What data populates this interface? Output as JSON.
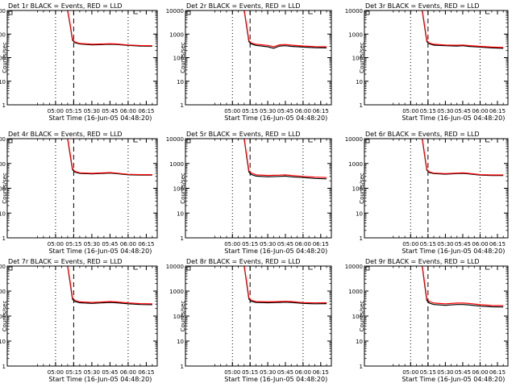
{
  "colors": {
    "events": "#000000",
    "lld": "#ff0000",
    "background": "#ffffff"
  },
  "chart_data": [
    {
      "type": "line",
      "title": "Det 1r BLACK = Events, RED = LLD",
      "xlabel": "Start Time (16-Jun-05 04:48:20)",
      "ylabel": "Counts/sec",
      "y_scale": "log",
      "ylim": [
        1,
        10000
      ],
      "y_ticks": [
        "1",
        "10",
        "100",
        "1000",
        "10000"
      ],
      "x_ticks": [
        "05:00",
        "05:15",
        "05:30",
        "05:45",
        "06:00",
        "06:15"
      ],
      "grid": false,
      "vertical_markers": [
        {
          "time": "05:00",
          "style": "dotted"
        },
        {
          "time": "05:15",
          "style": "dashed"
        },
        {
          "time": "06:00",
          "style": "dotted"
        }
      ],
      "series": [
        {
          "name": "Events",
          "color": "black",
          "x": [
            "05:10",
            "05:12",
            "05:14",
            "05:16",
            "05:20",
            "05:30",
            "05:40",
            "05:45",
            "05:50",
            "06:00",
            "06:10",
            "06:20"
          ],
          "y": [
            10000,
            2500,
            550,
            430,
            380,
            350,
            360,
            370,
            360,
            330,
            310,
            305
          ]
        },
        {
          "name": "LLD",
          "color": "red",
          "x": [
            "05:10",
            "05:12",
            "05:14",
            "05:16",
            "05:20",
            "05:30",
            "05:40",
            "05:45",
            "05:50",
            "06:00",
            "06:10",
            "06:20"
          ],
          "y": [
            10000,
            2700,
            600,
            460,
            400,
            370,
            380,
            390,
            380,
            345,
            325,
            320
          ]
        }
      ]
    },
    {
      "type": "line",
      "title": "Det 2r BLACK = Events, RED = LLD",
      "xlabel": "Start Time (16-Jun-05 04:48:20)",
      "ylabel": "Counts/sec",
      "y_scale": "log",
      "ylim": [
        1,
        10000
      ],
      "y_ticks": [
        "1",
        "10",
        "100",
        "1000",
        "10000"
      ],
      "x_ticks": [
        "05:00",
        "05:15",
        "05:30",
        "05:45",
        "06:00",
        "06:15"
      ],
      "grid": false,
      "vertical_markers": [
        {
          "time": "05:00",
          "style": "dotted"
        },
        {
          "time": "05:15",
          "style": "dashed"
        },
        {
          "time": "06:00",
          "style": "dotted"
        }
      ],
      "series": [
        {
          "name": "Events",
          "color": "black",
          "x": [
            "05:10",
            "05:12",
            "05:14",
            "05:16",
            "05:20",
            "05:30",
            "05:35",
            "05:40",
            "05:45",
            "05:50",
            "06:00",
            "06:10",
            "06:20"
          ],
          "y": [
            10000,
            2200,
            480,
            380,
            330,
            290,
            250,
            310,
            320,
            300,
            280,
            265,
            260
          ]
        },
        {
          "name": "LLD",
          "color": "red",
          "x": [
            "05:10",
            "05:12",
            "05:14",
            "05:16",
            "05:20",
            "05:30",
            "05:35",
            "05:40",
            "05:45",
            "05:50",
            "06:00",
            "06:10",
            "06:20"
          ],
          "y": [
            10000,
            2500,
            540,
            420,
            370,
            330,
            290,
            350,
            360,
            340,
            310,
            295,
            290
          ]
        }
      ]
    },
    {
      "type": "line",
      "title": "Det 3r BLACK = Events, RED = LLD",
      "xlabel": "Start Time (16-Jun-05 04:48:20)",
      "ylabel": "Counts/sec",
      "y_scale": "log",
      "ylim": [
        1,
        10000
      ],
      "y_ticks": [
        "1",
        "10",
        "100",
        "1000",
        "10000"
      ],
      "x_ticks": [
        "05:00",
        "05:15",
        "05:30",
        "05:45",
        "06:00",
        "06:15"
      ],
      "grid": false,
      "vertical_markers": [
        {
          "time": "05:00",
          "style": "dotted"
        },
        {
          "time": "05:15",
          "style": "dashed"
        },
        {
          "time": "06:00",
          "style": "dotted"
        }
      ],
      "series": [
        {
          "name": "Events",
          "color": "black",
          "x": [
            "05:10",
            "05:12",
            "05:14",
            "05:16",
            "05:20",
            "05:30",
            "05:40",
            "05:45",
            "05:50",
            "06:00",
            "06:10",
            "06:20"
          ],
          "y": [
            10000,
            2200,
            480,
            390,
            340,
            320,
            310,
            320,
            300,
            280,
            260,
            250
          ]
        },
        {
          "name": "LLD",
          "color": "red",
          "x": [
            "05:10",
            "05:12",
            "05:14",
            "05:16",
            "05:20",
            "05:30",
            "05:40",
            "05:45",
            "05:50",
            "06:00",
            "06:10",
            "06:20"
          ],
          "y": [
            10000,
            2500,
            530,
            420,
            370,
            345,
            335,
            345,
            325,
            300,
            280,
            270
          ]
        }
      ]
    },
    {
      "type": "line",
      "title": "Det 4r BLACK = Events, RED = LLD",
      "xlabel": "Start Time (16-Jun-05 04:48:20)",
      "ylabel": "Counts/sec",
      "y_scale": "log",
      "ylim": [
        1,
        10000
      ],
      "y_ticks": [
        "1",
        "10",
        "100",
        "1000",
        "10000"
      ],
      "x_ticks": [
        "05:00",
        "05:15",
        "05:30",
        "05:45",
        "06:00",
        "06:15"
      ],
      "grid": false,
      "vertical_markers": [
        {
          "time": "05:00",
          "style": "dotted"
        },
        {
          "time": "05:15",
          "style": "dashed"
        },
        {
          "time": "06:00",
          "style": "dotted"
        }
      ],
      "series": [
        {
          "name": "Events",
          "color": "black",
          "x": [
            "05:10",
            "05:12",
            "05:14",
            "05:16",
            "05:20",
            "05:30",
            "05:40",
            "05:45",
            "05:50",
            "06:00",
            "06:10",
            "06:20"
          ],
          "y": [
            10000,
            2300,
            560,
            450,
            400,
            380,
            400,
            410,
            390,
            350,
            340,
            340
          ]
        },
        {
          "name": "LLD",
          "color": "red",
          "x": [
            "05:10",
            "05:12",
            "05:14",
            "05:16",
            "05:20",
            "05:30",
            "05:40",
            "05:45",
            "05:50",
            "06:00",
            "06:10",
            "06:20"
          ],
          "y": [
            10000,
            2600,
            620,
            480,
            420,
            400,
            420,
            430,
            410,
            365,
            355,
            355
          ]
        }
      ]
    },
    {
      "type": "line",
      "title": "Det 5r BLACK = Events, RED = LLD",
      "xlabel": "Start Time (16-Jun-05 04:48:20)",
      "ylabel": "Counts/sec",
      "y_scale": "log",
      "ylim": [
        1,
        10000
      ],
      "y_ticks": [
        "1",
        "10",
        "100",
        "1000",
        "10000"
      ],
      "x_ticks": [
        "05:00",
        "05:15",
        "05:30",
        "05:45",
        "06:00",
        "06:15"
      ],
      "grid": false,
      "vertical_markers": [
        {
          "time": "05:00",
          "style": "dotted"
        },
        {
          "time": "05:15",
          "style": "dashed"
        },
        {
          "time": "06:00",
          "style": "dotted"
        }
      ],
      "series": [
        {
          "name": "Events",
          "color": "black",
          "x": [
            "05:10",
            "05:12",
            "05:14",
            "05:16",
            "05:20",
            "05:30",
            "05:40",
            "05:45",
            "05:50",
            "06:00",
            "06:10",
            "06:20"
          ],
          "y": [
            10000,
            2000,
            450,
            360,
            310,
            290,
            300,
            310,
            290,
            270,
            250,
            240
          ]
        },
        {
          "name": "LLD",
          "color": "red",
          "x": [
            "05:10",
            "05:12",
            "05:14",
            "05:16",
            "05:20",
            "05:30",
            "05:40",
            "05:45",
            "05:50",
            "06:00",
            "06:10",
            "06:20"
          ],
          "y": [
            10000,
            2300,
            510,
            410,
            350,
            330,
            340,
            350,
            330,
            300,
            280,
            270
          ]
        }
      ]
    },
    {
      "type": "line",
      "title": "Det 6r BLACK = Events, RED = LLD",
      "xlabel": "Start Time (16-Jun-05 04:48:20)",
      "ylabel": "Counts/sec",
      "y_scale": "log",
      "ylim": [
        1,
        10000
      ],
      "y_ticks": [
        "1",
        "10",
        "100",
        "1000",
        "10000"
      ],
      "x_ticks": [
        "05:00",
        "05:15",
        "05:30",
        "05:45",
        "06:00",
        "06:15"
      ],
      "grid": false,
      "vertical_markers": [
        {
          "time": "05:00",
          "style": "dotted"
        },
        {
          "time": "05:15",
          "style": "dashed"
        },
        {
          "time": "06:00",
          "style": "dotted"
        }
      ],
      "series": [
        {
          "name": "Events",
          "color": "black",
          "x": [
            "05:10",
            "05:12",
            "05:14",
            "05:16",
            "05:20",
            "05:30",
            "05:40",
            "05:45",
            "05:50",
            "06:00",
            "06:10",
            "06:20"
          ],
          "y": [
            10000,
            2300,
            540,
            430,
            390,
            370,
            390,
            400,
            380,
            340,
            330,
            330
          ]
        },
        {
          "name": "LLD",
          "color": "red",
          "x": [
            "05:10",
            "05:12",
            "05:14",
            "05:16",
            "05:20",
            "05:30",
            "05:40",
            "05:45",
            "05:50",
            "06:00",
            "06:10",
            "06:20"
          ],
          "y": [
            10000,
            2500,
            580,
            460,
            410,
            390,
            410,
            420,
            400,
            355,
            345,
            345
          ]
        }
      ]
    },
    {
      "type": "line",
      "title": "Det 7r BLACK = Events, RED = LLD",
      "xlabel": "Start Time (16-Jun-05 04:48:20)",
      "ylabel": "Counts/sec",
      "y_scale": "log",
      "ylim": [
        1,
        10000
      ],
      "y_ticks": [
        "1",
        "10",
        "100",
        "1000",
        "10000"
      ],
      "x_ticks": [
        "05:00",
        "05:15",
        "05:30",
        "05:45",
        "06:00",
        "06:15"
      ],
      "grid": false,
      "vertical_markers": [
        {
          "time": "05:00",
          "style": "dotted"
        },
        {
          "time": "05:15",
          "style": "dashed"
        },
        {
          "time": "06:00",
          "style": "dotted"
        }
      ],
      "series": [
        {
          "name": "Events",
          "color": "black",
          "x": [
            "05:10",
            "05:12",
            "05:14",
            "05:16",
            "05:20",
            "05:30",
            "05:40",
            "05:45",
            "05:50",
            "06:00",
            "06:10",
            "06:20"
          ],
          "y": [
            10000,
            2200,
            470,
            380,
            340,
            320,
            340,
            350,
            340,
            310,
            290,
            285
          ]
        },
        {
          "name": "LLD",
          "color": "red",
          "x": [
            "05:10",
            "05:12",
            "05:14",
            "05:16",
            "05:20",
            "05:30",
            "05:40",
            "05:45",
            "05:50",
            "06:00",
            "06:10",
            "06:20"
          ],
          "y": [
            10000,
            2500,
            530,
            420,
            370,
            350,
            370,
            380,
            370,
            335,
            315,
            310
          ]
        }
      ]
    },
    {
      "type": "line",
      "title": "Det 8r BLACK = Events, RED = LLD",
      "xlabel": "Start Time (16-Jun-05 04:48:20)",
      "ylabel": "Counts/sec",
      "y_scale": "log",
      "ylim": [
        1,
        10000
      ],
      "y_ticks": [
        "1",
        "10",
        "100",
        "1000",
        "10000"
      ],
      "x_ticks": [
        "05:00",
        "05:15",
        "05:30",
        "05:45",
        "06:00",
        "06:15"
      ],
      "grid": false,
      "vertical_markers": [
        {
          "time": "05:00",
          "style": "dotted"
        },
        {
          "time": "05:15",
          "style": "dashed"
        },
        {
          "time": "06:00",
          "style": "dotted"
        }
      ],
      "series": [
        {
          "name": "Events",
          "color": "black",
          "x": [
            "05:10",
            "05:12",
            "05:14",
            "05:16",
            "05:20",
            "05:30",
            "05:40",
            "05:45",
            "05:50",
            "06:00",
            "06:10",
            "06:20"
          ],
          "y": [
            10000,
            2200,
            480,
            390,
            350,
            340,
            350,
            360,
            350,
            320,
            310,
            315
          ]
        },
        {
          "name": "LLD",
          "color": "red",
          "x": [
            "05:10",
            "05:12",
            "05:14",
            "05:16",
            "05:20",
            "05:30",
            "05:40",
            "05:45",
            "05:50",
            "06:00",
            "06:10",
            "06:20"
          ],
          "y": [
            10000,
            2500,
            540,
            430,
            380,
            370,
            380,
            390,
            380,
            345,
            335,
            340
          ]
        }
      ]
    },
    {
      "type": "line",
      "title": "Det 9r BLACK = Events, RED = LLD",
      "xlabel": "Start Time (16-Jun-05 04:48:20)",
      "ylabel": "Counts/sec",
      "y_scale": "log",
      "ylim": [
        1,
        10000
      ],
      "y_ticks": [
        "1",
        "10",
        "100",
        "1000",
        "10000"
      ],
      "x_ticks": [
        "05:00",
        "05:15",
        "05:30",
        "05:45",
        "06:00",
        "06:15"
      ],
      "grid": false,
      "vertical_markers": [
        {
          "time": "05:00",
          "style": "dotted"
        },
        {
          "time": "05:15",
          "style": "dashed"
        },
        {
          "time": "06:00",
          "style": "dotted"
        }
      ],
      "series": [
        {
          "name": "Events",
          "color": "black",
          "x": [
            "05:10",
            "05:12",
            "05:14",
            "05:16",
            "05:20",
            "05:30",
            "05:40",
            "05:45",
            "05:50",
            "06:00",
            "06:10",
            "06:20"
          ],
          "y": [
            10000,
            2000,
            420,
            330,
            290,
            270,
            290,
            290,
            280,
            250,
            235,
            230
          ]
        },
        {
          "name": "LLD",
          "color": "red",
          "x": [
            "05:10",
            "05:12",
            "05:14",
            "05:16",
            "05:20",
            "05:30",
            "05:40",
            "05:45",
            "05:50",
            "06:00",
            "06:10",
            "06:20"
          ],
          "y": [
            10000,
            2300,
            480,
            380,
            330,
            310,
            330,
            330,
            320,
            285,
            265,
            260
          ]
        }
      ]
    }
  ]
}
